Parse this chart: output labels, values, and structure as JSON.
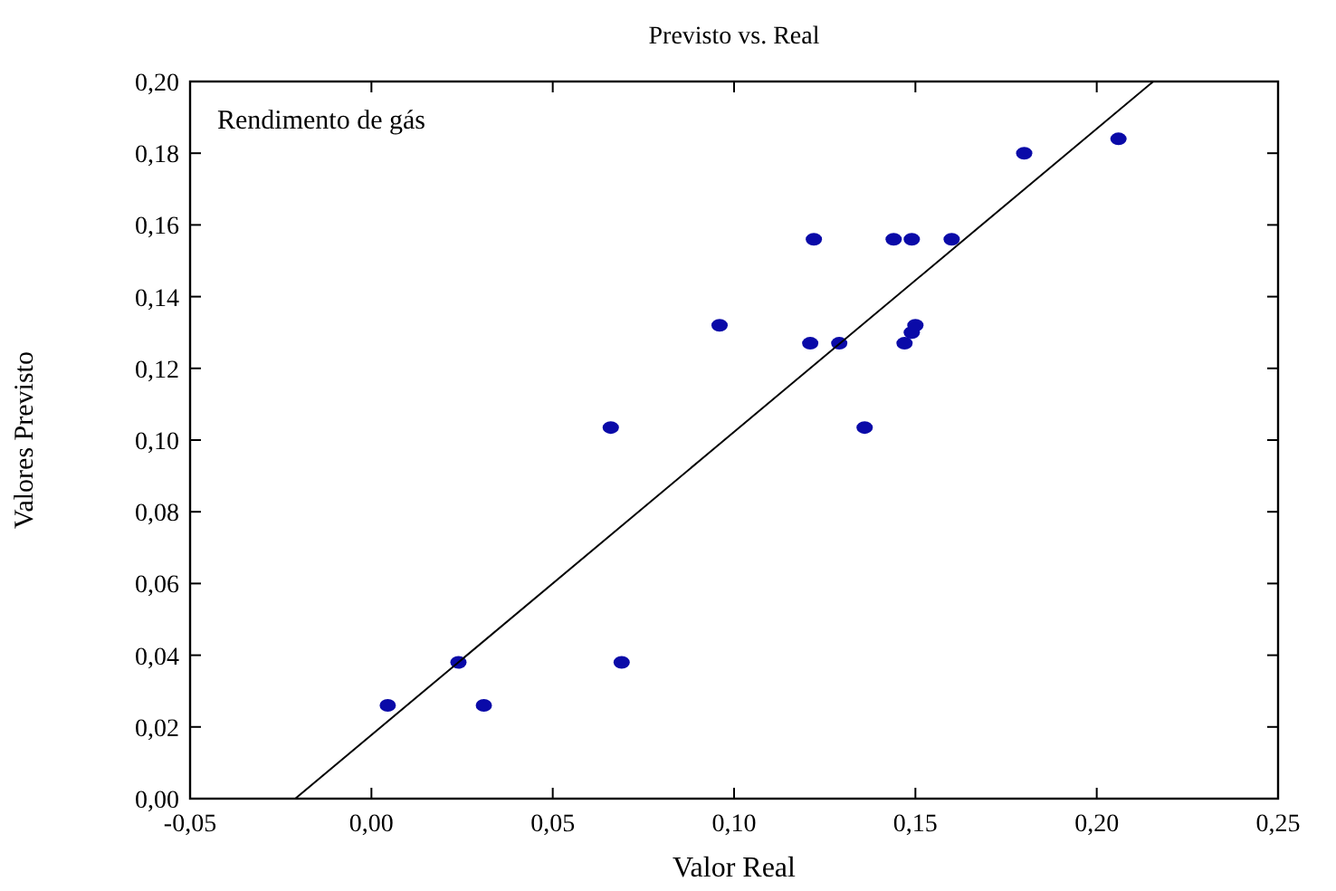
{
  "chart_data": {
    "type": "scatter",
    "title": "Previsto vs. Real",
    "xlabel": "Valor Real",
    "ylabel": "Valores Previsto",
    "annotations": [
      "Rendimento de gás"
    ],
    "xlim": [
      -0.05,
      0.25
    ],
    "ylim": [
      0,
      0.2
    ],
    "xticks": [
      {
        "value": -0.05,
        "label": "-0,05"
      },
      {
        "value": 0,
        "label": "0,00"
      },
      {
        "value": 0.05,
        "label": "0,05"
      },
      {
        "value": 0.1,
        "label": "0,10"
      },
      {
        "value": 0.15,
        "label": "0,15"
      },
      {
        "value": 0.2,
        "label": "0,20"
      },
      {
        "value": 0.25,
        "label": "0,25"
      }
    ],
    "yticks": [
      {
        "value": 0,
        "label": "0,00"
      },
      {
        "value": 0.02,
        "label": "0,02"
      },
      {
        "value": 0.04,
        "label": "0,04"
      },
      {
        "value": 0.06,
        "label": "0,06"
      },
      {
        "value": 0.08,
        "label": "0,08"
      },
      {
        "value": 0.1,
        "label": "0,10"
      },
      {
        "value": 0.12,
        "label": "0,12"
      },
      {
        "value": 0.14,
        "label": "0,14"
      },
      {
        "value": 0.16,
        "label": "0,16"
      },
      {
        "value": 0.18,
        "label": "0,18"
      },
      {
        "value": 0.2,
        "label": "0,20"
      }
    ],
    "grid": false,
    "series": [
      {
        "marker": "circle",
        "color": "#0a0aa8",
        "x": [
          0.206,
          0.18,
          0.122,
          0.144,
          0.149,
          0.16,
          0.096,
          0.121,
          0.129,
          0.147,
          0.149,
          0.15,
          0.066,
          0.136,
          0.024,
          0.069,
          0.0045,
          0.031
        ],
        "values": [
          0.184,
          0.18,
          0.156,
          0.156,
          0.156,
          0.156,
          0.132,
          0.127,
          0.127,
          0.127,
          0.13,
          0.132,
          0.1035,
          0.1035,
          0.038,
          0.038,
          0.026,
          0.026
        ]
      },
      {
        "type": "line",
        "color": "#000000",
        "x": [
          -0.021,
          0.2156
        ],
        "values": [
          0,
          0.2
        ]
      }
    ]
  }
}
